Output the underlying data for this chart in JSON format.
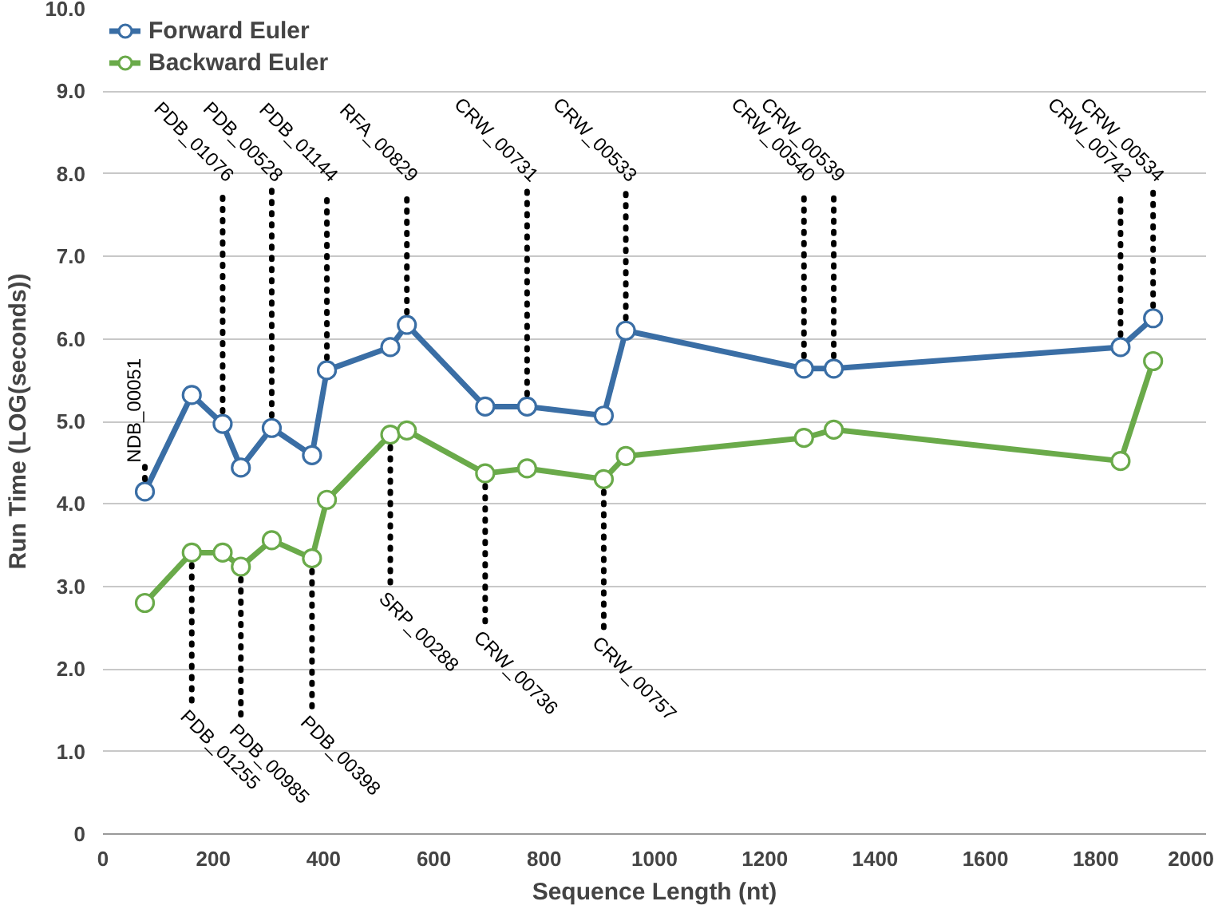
{
  "chart_data": {
    "type": "line",
    "xlabel": "Sequence Length (nt)",
    "ylabel": "Run Time (LOG(seconds))",
    "x": [
      76,
      161,
      217,
      250,
      306,
      379,
      406,
      521,
      551,
      693,
      769,
      908,
      948,
      1271,
      1325,
      1845,
      1904
    ],
    "series": [
      {
        "name": "Forward Euler",
        "color": "#3a6ea5",
        "values": [
          4.15,
          5.32,
          4.97,
          4.44,
          4.92,
          4.59,
          5.62,
          5.9,
          6.17,
          5.18,
          5.18,
          5.07,
          6.1,
          5.64,
          5.64,
          5.9,
          6.25
        ]
      },
      {
        "name": "Backward Euler",
        "color": "#6aaa4a",
        "values": [
          2.8,
          3.41,
          3.41,
          3.24,
          3.56,
          3.34,
          4.05,
          4.84,
          4.89,
          4.37,
          4.43,
          4.3,
          4.58,
          4.8,
          4.9,
          4.52,
          5.73
        ]
      }
    ],
    "xlim": [
      0,
      2000
    ],
    "xticks": [
      0,
      200,
      400,
      600,
      800,
      1000,
      1200,
      1400,
      1600,
      1800,
      2000
    ],
    "ylim": [
      0,
      10
    ],
    "yticks": [
      0,
      {
        "value": 1,
        "label": "1.0"
      },
      {
        "value": 2,
        "label": "2.0"
      },
      {
        "value": 3,
        "label": "3.0"
      },
      {
        "value": 4,
        "label": "4.0"
      },
      {
        "value": 5,
        "label": "5.0"
      },
      {
        "value": 6,
        "label": "6.0"
      },
      {
        "value": 7,
        "label": "7.0"
      },
      {
        "value": 8,
        "label": "8.0"
      },
      {
        "value": 9,
        "label": "9.0"
      },
      {
        "value": 10,
        "label": "10.0"
      }
    ],
    "grid": "y",
    "legend": "top left",
    "marker": "circle",
    "line_style": "solid",
    "annotations": [
      {
        "text": "NDB_00051",
        "x": 76,
        "y": 4.15
      },
      {
        "text": "PDB_01076",
        "x": 217,
        "y": 4.97
      },
      {
        "text": "PDB_00528",
        "x": 306,
        "y": 4.92
      },
      {
        "text": "PDB_01144",
        "x": 406,
        "y": 5.62
      },
      {
        "text": "RFA_00829",
        "x": 551,
        "y": 6.17
      },
      {
        "text": "CRW_00731",
        "x": 769,
        "y": 5.18
      },
      {
        "text": "CRW_00533",
        "x": 948,
        "y": 6.1
      },
      {
        "text": "CRW_00540",
        "x": 1271,
        "y": 5.64
      },
      {
        "text": "CRW_00539",
        "x": 1325,
        "y": 5.64
      },
      {
        "text": "CRW_00742",
        "x": 1845,
        "y": 5.9
      },
      {
        "text": "CRW_00534",
        "x": 1904,
        "y": 6.25
      },
      {
        "text": "PDB_01255",
        "x": 161,
        "y": 3.41
      },
      {
        "text": "PDB_00985",
        "x": 250,
        "y": 3.24
      },
      {
        "text": "PDB_00398",
        "x": 379,
        "y": 3.34
      },
      {
        "text": "SRP_00288",
        "x": 521,
        "y": 4.84
      },
      {
        "text": "CRW_00736",
        "x": 693,
        "y": 4.37
      },
      {
        "text": "CRW_00757",
        "x": 908,
        "y": 4.3
      }
    ]
  }
}
